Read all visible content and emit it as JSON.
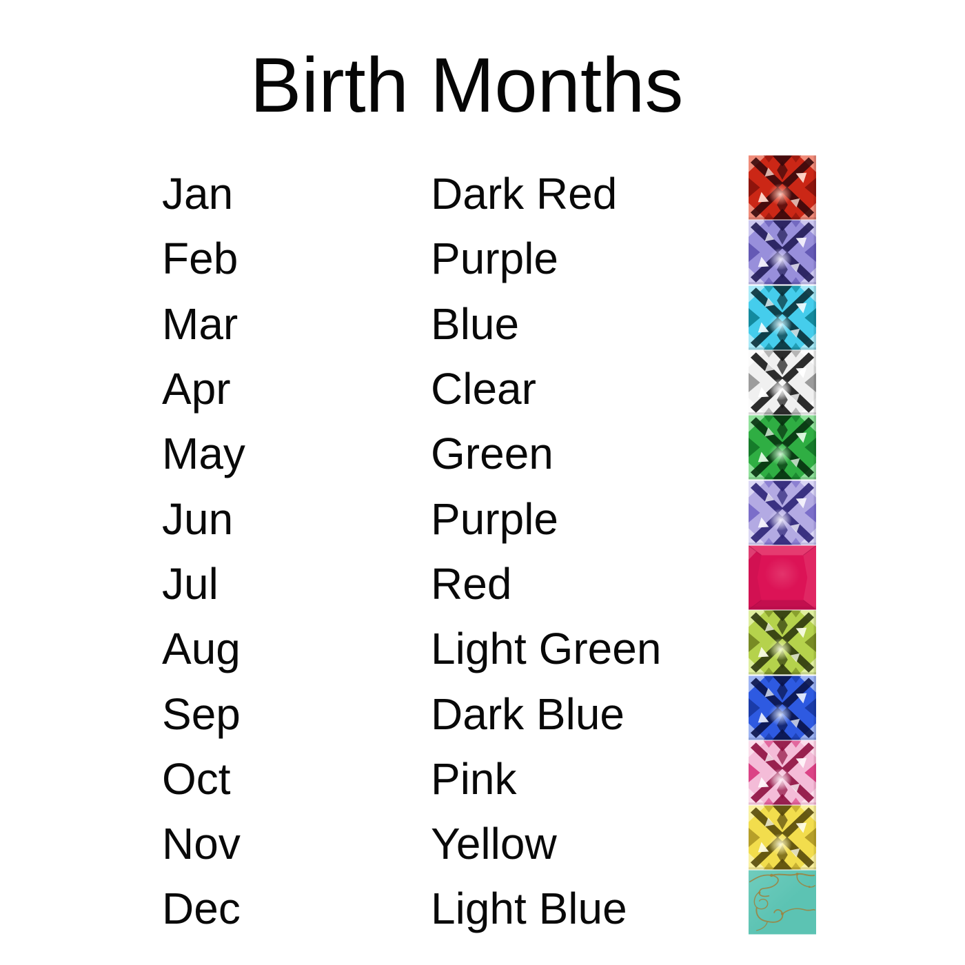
{
  "title": "Birth Months",
  "colors": {
    "background": "#ffffff",
    "text": "#090909"
  },
  "months": [
    {
      "month": "Jan",
      "color_name": "Dark Red",
      "icon": "gem-dark-red-icon",
      "style": "faceted",
      "palette": {
        "base": "#cb2716",
        "mid": "#84120b",
        "dark": "#37090b",
        "light": "#f0907e",
        "white": "#ffd9ce"
      }
    },
    {
      "month": "Feb",
      "color_name": "Purple",
      "icon": "gem-purple-icon",
      "style": "faceted",
      "palette": {
        "base": "#988fdb",
        "mid": "#5a50ae",
        "dark": "#211b56",
        "light": "#cfcaf0",
        "white": "#f3f1fc"
      }
    },
    {
      "month": "Mar",
      "color_name": "Blue",
      "icon": "gem-blue-icon",
      "style": "faceted",
      "palette": {
        "base": "#45cdec",
        "mid": "#0b7e91",
        "dark": "#093039",
        "light": "#aeeaf8",
        "white": "#ebfafe"
      }
    },
    {
      "month": "Apr",
      "color_name": "Clear",
      "icon": "gem-clear-icon",
      "style": "faceted",
      "palette": {
        "base": "#f0f0f0",
        "mid": "#8d8d8d",
        "dark": "#161616",
        "light": "#fbfbfb",
        "white": "#ffffff"
      }
    },
    {
      "month": "May",
      "color_name": "Green",
      "icon": "gem-green-icon",
      "style": "faceted",
      "palette": {
        "base": "#2fae43",
        "mid": "#117226",
        "dark": "#07310f",
        "light": "#96e3a0",
        "white": "#e2f9e4"
      }
    },
    {
      "month": "Jun",
      "color_name": "Purple",
      "icon": "gem-purple-icon",
      "style": "faceted",
      "palette": {
        "base": "#b3aae3",
        "mid": "#7164c4",
        "dark": "#2c2376",
        "light": "#dcd8f4",
        "white": "#f5f3fc"
      }
    },
    {
      "month": "Jul",
      "color_name": "Red",
      "icon": "gem-red-icon",
      "style": "flat",
      "palette": {
        "base": "#dc1356",
        "mid": "#c11150",
        "dark": "#a50b45",
        "light": "#ec5c86",
        "white": "#f791af"
      }
    },
    {
      "month": "Aug",
      "color_name": "Light Green",
      "icon": "gem-light-green-icon",
      "style": "faceted",
      "palette": {
        "base": "#b5d24c",
        "mid": "#6d7f1d",
        "dark": "#2e370e",
        "light": "#e2efa3",
        "white": "#f8fbe4"
      }
    },
    {
      "month": "Sep",
      "color_name": "Dark Blue",
      "icon": "gem-dark-blue-icon",
      "style": "faceted",
      "palette": {
        "base": "#2e5ae1",
        "mid": "#16369e",
        "dark": "#0a1349",
        "light": "#a3b8f2",
        "white": "#e4ebfc"
      }
    },
    {
      "month": "Oct",
      "color_name": "Pink",
      "icon": "gem-pink-icon",
      "style": "faceted",
      "palette": {
        "base": "#f4bcd8",
        "mid": "#d62e78",
        "dark": "#8e1040",
        "light": "#fadeec",
        "white": "#fef5fa"
      }
    },
    {
      "month": "Nov",
      "color_name": "Yellow",
      "icon": "gem-yellow-icon",
      "style": "faceted",
      "palette": {
        "base": "#f2dd4d",
        "mid": "#ac9423",
        "dark": "#57490b",
        "light": "#f9f0a4",
        "white": "#fdfbe3"
      }
    },
    {
      "month": "Dec",
      "color_name": "Light Blue",
      "icon": "gem-light-blue-icon",
      "style": "stone",
      "palette": {
        "base": "#5fc5b5",
        "mid": "#74cfc0",
        "dark": "#3ba393",
        "light": "#8ad8cb",
        "white": "#b9e8e0",
        "vein": "#a5823c"
      }
    }
  ]
}
